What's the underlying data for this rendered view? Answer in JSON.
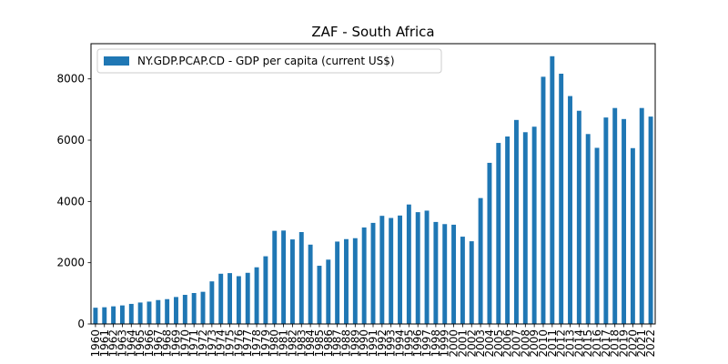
{
  "chart_data": {
    "type": "bar",
    "title": "ZAF - South Africa",
    "xlabel": "",
    "ylabel": "",
    "ylim": [
      0,
      9150
    ],
    "yticks": [
      0,
      2000,
      4000,
      6000,
      8000
    ],
    "grid": false,
    "legend_placement": "top-left",
    "bar_color": "#1f77b4",
    "categories": [
      "1960",
      "1961",
      "1962",
      "1963",
      "1964",
      "1965",
      "1966",
      "1967",
      "1968",
      "1969",
      "1970",
      "1971",
      "1972",
      "1973",
      "1974",
      "1975",
      "1976",
      "1977",
      "1978",
      "1979",
      "1980",
      "1981",
      "1982",
      "1983",
      "1984",
      "1985",
      "1986",
      "1987",
      "1988",
      "1989",
      "1990",
      "1991",
      "1992",
      "1993",
      "1994",
      "1995",
      "1996",
      "1997",
      "1998",
      "1999",
      "2000",
      "2001",
      "2002",
      "2003",
      "2004",
      "2005",
      "2006",
      "2007",
      "2008",
      "2009",
      "2010",
      "2011",
      "2012",
      "2013",
      "2014",
      "2015",
      "2016",
      "2017",
      "2018",
      "2019",
      "2020",
      "2021",
      "2022"
    ],
    "series": [
      {
        "name": "NY.GDP.PCAP.CD - GDP per capita (current US$)",
        "values": [
          530,
          545,
          575,
          605,
          655,
          700,
          730,
          780,
          810,
          880,
          950,
          1010,
          1050,
          1390,
          1640,
          1660,
          1560,
          1670,
          1850,
          2210,
          3040,
          3050,
          2760,
          3000,
          2590,
          1900,
          2100,
          2690,
          2770,
          2800,
          3150,
          3300,
          3530,
          3460,
          3540,
          3900,
          3650,
          3700,
          3330,
          3260,
          3240,
          2850,
          2700,
          4110,
          5260,
          5910,
          6120,
          6660,
          6260,
          6440,
          8070,
          8740,
          8170,
          7440,
          6960,
          6200,
          5750,
          6740,
          7050,
          6690,
          5740,
          7050,
          6770
        ]
      }
    ]
  }
}
